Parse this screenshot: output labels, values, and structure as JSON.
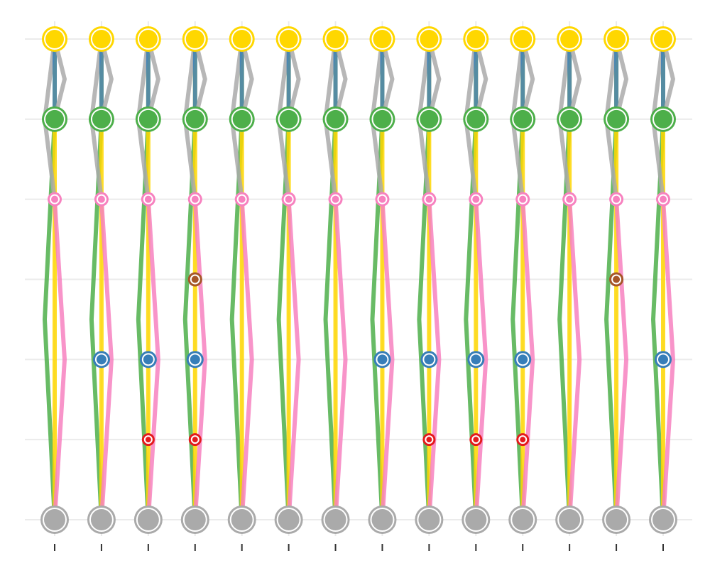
{
  "chart_data": {
    "type": "scatter",
    "title": "",
    "xlabel": "",
    "ylabel": "",
    "x": [
      1,
      2,
      3,
      4,
      5,
      6,
      7,
      8,
      9,
      10,
      11,
      12,
      13,
      14
    ],
    "rows": [
      {
        "id": "gray",
        "color": "#aaaaaa",
        "dots": [
          1,
          1,
          1,
          1,
          1,
          1,
          1,
          1,
          1,
          1,
          1,
          1,
          1,
          1
        ],
        "size": 15
      },
      {
        "id": "red",
        "color": "#e41a1c",
        "dots": [
          0,
          0,
          1,
          1,
          0,
          0,
          0,
          0,
          1,
          1,
          1,
          0,
          0,
          0
        ],
        "size": 4
      },
      {
        "id": "blue",
        "color": "#377eb8",
        "dots": [
          0,
          1,
          1,
          1,
          0,
          0,
          0,
          1,
          1,
          1,
          1,
          0,
          0,
          1
        ],
        "size": 7
      },
      {
        "id": "brown",
        "color": "#a65628",
        "dots": [
          0,
          0,
          0,
          1,
          0,
          0,
          0,
          0,
          0,
          0,
          0,
          0,
          1,
          0
        ],
        "size": 5
      },
      {
        "id": "pink",
        "color": "#f781bf",
        "dots": [
          1,
          1,
          1,
          1,
          1,
          1,
          1,
          1,
          1,
          1,
          1,
          1,
          1,
          1
        ],
        "size": 5
      },
      {
        "id": "green",
        "color": "#4daf4a",
        "dots": [
          1,
          1,
          1,
          1,
          1,
          1,
          1,
          1,
          1,
          1,
          1,
          1,
          1,
          1
        ],
        "size": 13
      },
      {
        "id": "yellow",
        "color": "#ffd700",
        "dots": [
          1,
          1,
          1,
          1,
          1,
          1,
          1,
          1,
          1,
          1,
          1,
          1,
          1,
          1
        ],
        "size": 13
      }
    ],
    "links": [
      {
        "color": "#4daf4a",
        "rowA": 0,
        "rowB": 5
      },
      {
        "color": "#ffd700",
        "rowA": 0,
        "rowB": 6
      },
      {
        "color": "#f781bf",
        "rowA": 0,
        "rowB": 4
      },
      {
        "color": "#aaaaaa",
        "rowA": 4,
        "rowB": 6
      },
      {
        "color": "#377eb8",
        "rowA": 5,
        "rowB": 6
      },
      {
        "color": "#aaaaaa",
        "rowA": 5,
        "rowB": 6
      }
    ],
    "grid": true,
    "legend": "none"
  }
}
